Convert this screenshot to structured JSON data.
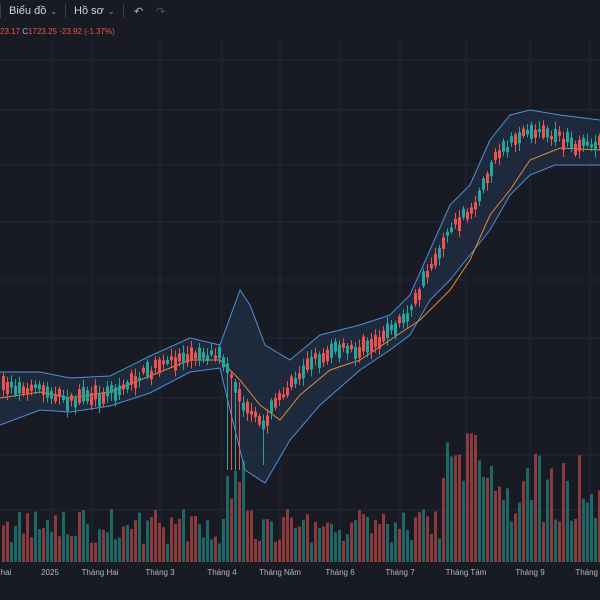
{
  "toolbar": {
    "chart_label": "Biểu đồ",
    "profile_label": "Hồ sơ",
    "undo_icon": "undo-icon",
    "redo_icon": "redo-icon"
  },
  "legend": {
    "open_partial": "23.17",
    "close_label": "C",
    "close_value": "1723.25",
    "change": "-23.92 (-1.37%)"
  },
  "colors": {
    "background": "#181b24",
    "up": "#26a69a",
    "down": "#ef5350",
    "band_line": "#4f8fd4",
    "band_fill": "#243550",
    "basis": "#e3893a",
    "grid": "#22263a"
  },
  "chart_data": {
    "type": "candlestick",
    "overlays": [
      "bollinger-bands",
      "moving-average"
    ],
    "x_tick_labels": [
      "hai",
      "2025",
      "Tháng Hai",
      "Tháng 3",
      "Tháng 4",
      "Tháng Năm",
      "Tháng 6",
      "Tháng 7",
      "Tháng Tám",
      "Tháng 9",
      "Tháng 1"
    ],
    "last_close": 1723.25,
    "change": -23.92,
    "change_pct": -1.37,
    "grid": true
  }
}
